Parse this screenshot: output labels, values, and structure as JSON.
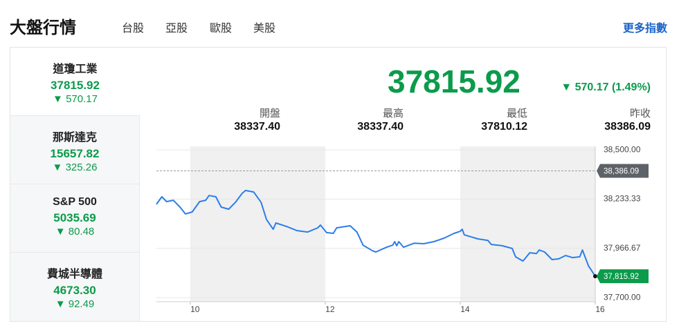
{
  "header": {
    "title": "大盤行情",
    "tabs": [
      "台股",
      "亞股",
      "歐股",
      "美股"
    ],
    "active_tab": 3,
    "more_link": "更多指數"
  },
  "indices": [
    {
      "name": "道瓊工業",
      "value": "37815.92",
      "change": "570.17"
    },
    {
      "name": "那斯達克",
      "value": "15657.82",
      "change": "325.26"
    },
    {
      "name": "S&P 500",
      "value": "5035.69",
      "change": "80.48"
    },
    {
      "name": "費城半導體",
      "value": "4673.30",
      "change": "92.49"
    }
  ],
  "summary": {
    "price": "37815.92",
    "change": "570.17 (1.49%)",
    "stats": [
      {
        "label": "開盤",
        "value": "38337.40"
      },
      {
        "label": "最高",
        "value": "38337.40"
      },
      {
        "label": "最低",
        "value": "37810.12"
      },
      {
        "label": "昨收",
        "value": "38386.09"
      }
    ]
  },
  "chart_data": {
    "type": "line",
    "x": [
      9.5,
      9.58,
      9.65,
      9.75,
      9.85,
      9.93,
      10.03,
      10.14,
      10.23,
      10.28,
      10.38,
      10.46,
      10.57,
      10.67,
      10.77,
      10.82,
      10.94,
      11.05,
      11.13,
      11.23,
      11.27,
      11.43,
      11.58,
      11.74,
      11.89,
      11.93,
      12.02,
      12.12,
      12.17,
      12.37,
      12.47,
      12.56,
      12.7,
      12.75,
      12.91,
      13.0,
      13.03,
      13.06,
      13.09,
      13.16,
      13.32,
      13.46,
      13.61,
      13.76,
      13.91,
      14.0,
      14.03,
      14.06,
      14.16,
      14.26,
      14.41,
      14.46,
      14.62,
      14.77,
      14.82,
      14.93,
      15.03,
      15.13,
      15.17,
      15.25,
      15.36,
      15.46,
      15.56,
      15.66,
      15.77,
      15.81,
      15.9,
      16.0
    ],
    "series": [
      {
        "color": "#2b7de9",
        "values": [
          38205,
          38246,
          38220,
          38227,
          38190,
          38153,
          38164,
          38220,
          38227,
          38253,
          38246,
          38190,
          38179,
          38216,
          38265,
          38280,
          38272,
          38216,
          38123,
          38070,
          38104,
          38085,
          38063,
          38055,
          38078,
          38093,
          38052,
          38048,
          38078,
          38089,
          38055,
          37984,
          37954,
          37947,
          37973,
          37984,
          38003,
          37981,
          38003,
          37973,
          37995,
          37992,
          38003,
          38022,
          38048,
          38059,
          38070,
          38040,
          38029,
          38018,
          38010,
          37988,
          37981,
          37966,
          37921,
          37898,
          37943,
          37939,
          37958,
          37947,
          37906,
          37910,
          37928,
          37917,
          37921,
          37958,
          37872,
          37815.92
        ]
      }
    ],
    "xlim": [
      9.5,
      16
    ],
    "xticks": [
      10,
      12,
      14,
      16
    ],
    "ylim": [
      37678,
      38519
    ],
    "yticks": [
      {
        "value": 37700,
        "label": "37,700.00"
      },
      {
        "value": 37966.67,
        "label": "37,966.67"
      },
      {
        "value": 38233.33,
        "label": "38,233.33"
      },
      {
        "value": 38500,
        "label": "38,500.00"
      }
    ],
    "grid": true,
    "ref_line": {
      "value": 38386.09,
      "label": "38,386.09"
    },
    "last_label": "37,815.92"
  }
}
